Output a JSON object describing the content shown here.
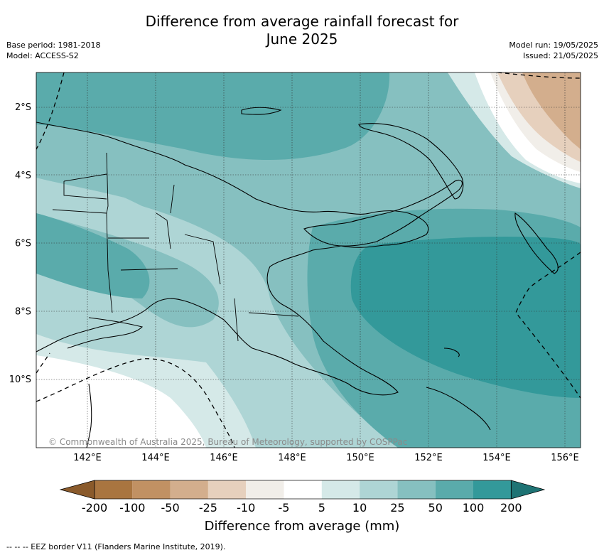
{
  "header": {
    "title_line1": "Difference from average rainfall forecast for",
    "title_line2": "June 2025",
    "base_period": "Base period: 1981-2018",
    "model": "Model: ACCESS-S2",
    "model_run": "Model run: 19/05/2025",
    "issued": "Issued: 21/05/2025"
  },
  "map": {
    "lon_ticks": [
      "142°E",
      "144°E",
      "146°E",
      "148°E",
      "150°E",
      "152°E",
      "154°E",
      "156°E"
    ],
    "lat_ticks": [
      "2°S",
      "4°S",
      "6°S",
      "8°S",
      "10°S"
    ],
    "copyright": "© Commonwealth of Australia 2025, Bureau of Meteorology, supported by COSPPac"
  },
  "colorbar": {
    "title": "Difference from average (mm)",
    "labels": [
      "-200",
      "-100",
      "-50",
      "-25",
      "-10",
      "-5",
      "5",
      "10",
      "25",
      "50",
      "100",
      "200"
    ],
    "colors": {
      "extend_low": "#8a5a2b",
      "bins": [
        "#a97540",
        "#c19163",
        "#d3ae8d",
        "#e6d0bd",
        "#f1eee9",
        "#ffffff",
        "#d5e9e8",
        "#aed5d5",
        "#86c0c0",
        "#5aabab",
        "#33999a"
      ],
      "extend_high": "#1e7374"
    }
  },
  "footer": {
    "eez_note": "--  --  -- EEZ border V11 (Flanders Marine Institute, 2019)."
  }
}
